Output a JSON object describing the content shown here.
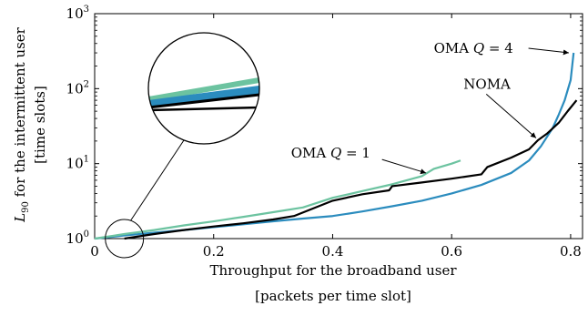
{
  "chart_data": {
    "type": "line",
    "title": "",
    "xlabel_line1": "Throughput for the broadband user",
    "xlabel_line2": "[packets per time slot]",
    "ylabel_line1": "L90 for the intermittent user",
    "ylabel_line2": "[time slots]",
    "x_ticks": [
      "0",
      "0.2",
      "0.4",
      "0.6",
      "0.8"
    ],
    "y_ticks": [
      {
        "base": "10",
        "exp": "0"
      },
      {
        "base": "10",
        "exp": "1"
      },
      {
        "base": "10",
        "exp": "2"
      },
      {
        "base": "10",
        "exp": "3"
      }
    ],
    "xlim": [
      0,
      0.82
    ],
    "ylim": [
      1,
      1000
    ],
    "yscale": "log",
    "grid": false,
    "series": [
      {
        "key": "oma_q1",
        "label": "OMA Q = 1",
        "color": "#6cc3a0",
        "points": [
          [
            0.0,
            1.0
          ],
          [
            0.05,
            1.15
          ],
          [
            0.1,
            1.3
          ],
          [
            0.15,
            1.5
          ],
          [
            0.2,
            1.7
          ],
          [
            0.25,
            1.95
          ],
          [
            0.3,
            2.25
          ],
          [
            0.35,
            2.6
          ],
          [
            0.4,
            3.5
          ],
          [
            0.45,
            4.3
          ],
          [
            0.5,
            5.3
          ],
          [
            0.55,
            6.8
          ],
          [
            0.57,
            8.5
          ],
          [
            0.6,
            10.0
          ],
          [
            0.615,
            11.0
          ]
        ]
      },
      {
        "key": "noma",
        "label": "NOMA",
        "color": "#000000",
        "points": [
          [
            0.05,
            1.0
          ],
          [
            0.1,
            1.15
          ],
          [
            0.15,
            1.3
          ],
          [
            0.2,
            1.45
          ],
          [
            0.25,
            1.6
          ],
          [
            0.3,
            1.8
          ],
          [
            0.335,
            2.0
          ],
          [
            0.4,
            3.2
          ],
          [
            0.45,
            3.9
          ],
          [
            0.495,
            4.4
          ],
          [
            0.5,
            5.0
          ],
          [
            0.55,
            5.6
          ],
          [
            0.6,
            6.3
          ],
          [
            0.65,
            7.2
          ],
          [
            0.66,
            9.0
          ],
          [
            0.7,
            12.0
          ],
          [
            0.73,
            15.5
          ],
          [
            0.745,
            20.5
          ],
          [
            0.76,
            25.0
          ],
          [
            0.78,
            35.0
          ],
          [
            0.795,
            50.0
          ],
          [
            0.81,
            70.0
          ]
        ]
      },
      {
        "key": "oma_q4",
        "label": "OMA Q = 4",
        "color": "#2b8cbe",
        "points": [
          [
            0.0,
            1.0
          ],
          [
            0.05,
            1.1
          ],
          [
            0.1,
            1.2
          ],
          [
            0.15,
            1.3
          ],
          [
            0.2,
            1.42
          ],
          [
            0.25,
            1.55
          ],
          [
            0.3,
            1.7
          ],
          [
            0.35,
            1.85
          ],
          [
            0.4,
            2.0
          ],
          [
            0.45,
            2.3
          ],
          [
            0.5,
            2.7
          ],
          [
            0.55,
            3.2
          ],
          [
            0.6,
            4.0
          ],
          [
            0.65,
            5.2
          ],
          [
            0.7,
            7.5
          ],
          [
            0.73,
            11.0
          ],
          [
            0.75,
            17.0
          ],
          [
            0.77,
            30.0
          ],
          [
            0.78,
            45.0
          ],
          [
            0.79,
            70.0
          ],
          [
            0.8,
            130.0
          ],
          [
            0.805,
            300.0
          ]
        ]
      }
    ],
    "annotations": [
      {
        "key": "oma_q4",
        "text_main": "OMA ",
        "text_var": "Q",
        "text_rest": " = 4",
        "x": 0.57,
        "y": 300,
        "arrow_to": [
          0.8,
          300
        ]
      },
      {
        "key": "noma",
        "text_main": "NOMA",
        "text_var": "",
        "text_rest": "",
        "x": 0.62,
        "y": 100,
        "arrow_to": [
          0.745,
          22
        ]
      },
      {
        "key": "oma_q1",
        "text_main": "OMA ",
        "text_var": "Q",
        "text_rest": " = 1",
        "x": 0.33,
        "y": 12,
        "arrow_to": [
          0.56,
          7.5
        ]
      }
    ],
    "inset_zoom": {
      "center": [
        0.05,
        1.0
      ],
      "series_order": [
        "oma_q1",
        "oma_q4",
        "noma"
      ]
    }
  }
}
